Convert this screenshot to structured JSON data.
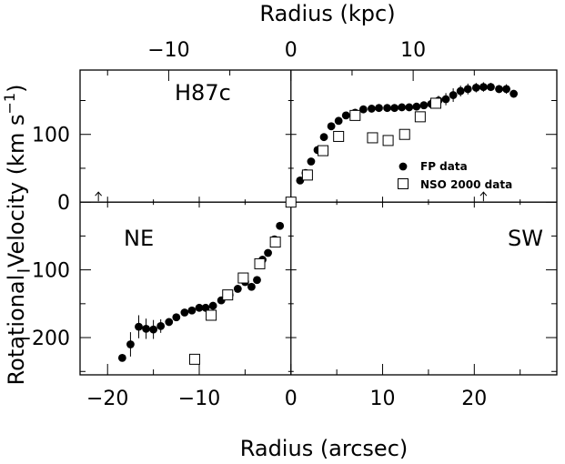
{
  "chart_data": {
    "type": "scatter",
    "xlabel_bottom": "Radius (arcsec)",
    "xlabel_top": "Radius (kpc)",
    "ylabel": "Rotational Velocity (km s",
    "ylabel_sup": "−1",
    "ylabel_close": ")",
    "xlim": [
      -23,
      29
    ],
    "ylim": [
      -255,
      195
    ],
    "top_axis_ticks": [
      {
        "value": -10,
        "label": "−10"
      },
      {
        "value": 0,
        "label": "0"
      },
      {
        "value": 10,
        "label": "10"
      }
    ],
    "bottom_axis_ticks": [
      {
        "value": -20,
        "label": "−20"
      },
      {
        "value": -10,
        "label": "−10"
      },
      {
        "value": 0,
        "label": "0"
      },
      {
        "value": 10,
        "label": "10"
      },
      {
        "value": 20,
        "label": "20"
      }
    ],
    "y_axis_ticks": [
      {
        "value": 100,
        "label": "100"
      },
      {
        "value": 0,
        "label": "0"
      },
      {
        "value": -100,
        "label": "−100"
      },
      {
        "value": -200,
        "label": "−200"
      }
    ],
    "panel_labels": {
      "top_left": "H87c",
      "bottom_left": "NE",
      "bottom_right": "SW"
    },
    "legend": {
      "placement": "lower-right of upper-right panel",
      "entries": [
        "FP data",
        "NSO 2000 data"
      ]
    },
    "markers": {
      "arrow_positions_x": [
        -21,
        21
      ]
    },
    "series": [
      {
        "name": "FP data",
        "marker": "filled-circle",
        "points": [
          {
            "x": 1.0,
            "y": 32,
            "err": 0
          },
          {
            "x": 1.6,
            "y": 43,
            "err": 0
          },
          {
            "x": 2.2,
            "y": 60,
            "err": 0
          },
          {
            "x": 2.9,
            "y": 77,
            "err": 0
          },
          {
            "x": 3.6,
            "y": 96,
            "err": 0
          },
          {
            "x": 4.4,
            "y": 112,
            "err": 0
          },
          {
            "x": 5.2,
            "y": 120,
            "err": 0
          },
          {
            "x": 6.0,
            "y": 128,
            "err": 4
          },
          {
            "x": 7.0,
            "y": 132,
            "err": 4
          },
          {
            "x": 7.9,
            "y": 137,
            "err": 5
          },
          {
            "x": 8.8,
            "y": 138,
            "err": 4
          },
          {
            "x": 9.6,
            "y": 139,
            "err": 3
          },
          {
            "x": 10.5,
            "y": 139,
            "err": 3
          },
          {
            "x": 11.3,
            "y": 139,
            "err": 3
          },
          {
            "x": 12.1,
            "y": 140,
            "err": 3
          },
          {
            "x": 12.9,
            "y": 140,
            "err": 3
          },
          {
            "x": 13.7,
            "y": 141,
            "err": 3
          },
          {
            "x": 14.5,
            "y": 143,
            "err": 4
          },
          {
            "x": 15.3,
            "y": 145,
            "err": 4
          },
          {
            "x": 16.1,
            "y": 150,
            "err": 7
          },
          {
            "x": 16.9,
            "y": 152,
            "err": 9
          },
          {
            "x": 17.7,
            "y": 158,
            "err": 10
          },
          {
            "x": 18.5,
            "y": 164,
            "err": 8
          },
          {
            "x": 19.3,
            "y": 167,
            "err": 8
          },
          {
            "x": 20.2,
            "y": 169,
            "err": 7
          },
          {
            "x": 21.0,
            "y": 170,
            "err": 7
          },
          {
            "x": 21.8,
            "y": 170,
            "err": 6
          },
          {
            "x": 22.7,
            "y": 167,
            "err": 6
          },
          {
            "x": 23.5,
            "y": 167,
            "err": 7
          },
          {
            "x": 24.3,
            "y": 160,
            "err": 0
          },
          {
            "x": -1.2,
            "y": -35,
            "err": 0
          },
          {
            "x": -1.8,
            "y": -55,
            "err": 0
          },
          {
            "x": -2.5,
            "y": -75,
            "err": 0
          },
          {
            "x": -3.1,
            "y": -85,
            "err": 0
          },
          {
            "x": -3.7,
            "y": -115,
            "err": 0
          },
          {
            "x": -4.3,
            "y": -125,
            "err": 0
          },
          {
            "x": -5.0,
            "y": -118,
            "err": 0
          },
          {
            "x": -5.8,
            "y": -128,
            "err": 0
          },
          {
            "x": -6.7,
            "y": -137,
            "err": 0
          },
          {
            "x": -7.6,
            "y": -145,
            "err": 0
          },
          {
            "x": -8.5,
            "y": -153,
            "err": 0
          },
          {
            "x": -9.3,
            "y": -156,
            "err": 0
          },
          {
            "x": -10.0,
            "y": -156,
            "err": 0
          },
          {
            "x": -10.8,
            "y": -160,
            "err": 0
          },
          {
            "x": -11.6,
            "y": -163,
            "err": 0
          },
          {
            "x": -12.5,
            "y": -170,
            "err": 0
          },
          {
            "x": -13.3,
            "y": -177,
            "err": 0
          },
          {
            "x": -14.2,
            "y": -183,
            "err": 10
          },
          {
            "x": -15.0,
            "y": -188,
            "err": 14
          },
          {
            "x": -15.8,
            "y": -187,
            "err": 15
          },
          {
            "x": -16.6,
            "y": -184,
            "err": 17
          },
          {
            "x": -17.5,
            "y": -210,
            "err": 18
          },
          {
            "x": -18.4,
            "y": -230,
            "err": 0
          }
        ]
      },
      {
        "name": "NSO 2000 data",
        "marker": "open-square",
        "points": [
          {
            "x": 0,
            "y": 0
          },
          {
            "x": 1.8,
            "y": 40
          },
          {
            "x": 3.5,
            "y": 76
          },
          {
            "x": 5.2,
            "y": 97
          },
          {
            "x": 7.0,
            "y": 128
          },
          {
            "x": 8.9,
            "y": 95
          },
          {
            "x": 10.6,
            "y": 91
          },
          {
            "x": 12.4,
            "y": 100
          },
          {
            "x": 14.1,
            "y": 126
          },
          {
            "x": 15.8,
            "y": 146
          },
          {
            "x": -1.7,
            "y": -59
          },
          {
            "x": -3.4,
            "y": -91
          },
          {
            "x": -5.2,
            "y": -112
          },
          {
            "x": -6.9,
            "y": -137
          },
          {
            "x": -8.7,
            "y": -167
          },
          {
            "x": -10.5,
            "y": -232
          }
        ]
      }
    ]
  }
}
